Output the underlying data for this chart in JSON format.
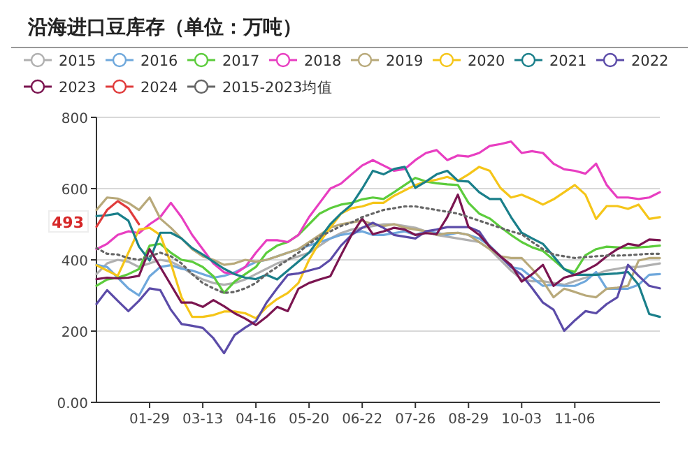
{
  "chart_data": {
    "type": "line",
    "title": "沿海进口豆库存（单位：万吨）",
    "legend": "top",
    "grid": "y",
    "line_style": "solid",
    "categories": [
      null,
      null,
      null,
      null,
      null,
      "01-29",
      null,
      null,
      null,
      null,
      "03-13",
      null,
      null,
      null,
      null,
      "04-16",
      null,
      null,
      null,
      null,
      "05-20",
      null,
      null,
      null,
      null,
      "06-22",
      null,
      null,
      null,
      null,
      "07-26",
      null,
      null,
      null,
      null,
      "08-29",
      null,
      null,
      null,
      null,
      "10-03",
      null,
      null,
      null,
      null,
      "11-06",
      null,
      null,
      null,
      null,
      null,
      null,
      null,
      null
    ],
    "ylim": [
      0,
      800
    ],
    "yticks": [
      {
        "value": 0,
        "label": "0.00"
      },
      200,
      400,
      600,
      800
    ],
    "annotations": [
      "493"
    ],
    "series": [
      {
        "name": "2015",
        "color": "#b0b0b0",
        "values": [
          360,
          390,
          400,
          395,
          380,
          390,
          400,
          395,
          380,
          360,
          345,
          335,
          330,
          335,
          345,
          360,
          375,
          390,
          400,
          410,
          420,
          440,
          460,
          475,
          485,
          490,
          495,
          500,
          500,
          495,
          490,
          480,
          470,
          465,
          460,
          455,
          450,
          430,
          400,
          370,
          345,
          340,
          340,
          335,
          330,
          340,
          350,
          360,
          370,
          375,
          380,
          380,
          385,
          390
        ]
      },
      {
        "name": "2016",
        "color": "#6fa8dc",
        "values": [
          386,
          380,
          350,
          320,
          300,
          354,
          380,
          385,
          375,
          370,
          360,
          350,
          355,
          365,
          380,
          394,
          400,
          410,
          420,
          430,
          440,
          450,
          460,
          470,
          475,
          480,
          470,
          470,
          475,
          480,
          470,
          480,
          476,
          470,
          476,
          470,
          460,
          440,
          410,
          380,
          374,
          350,
          327,
          330,
          327,
          327,
          340,
          366,
          319,
          319,
          319,
          330,
          358,
          360
        ]
      },
      {
        "name": "2017",
        "color": "#5ccc3c",
        "values": [
          327,
          345,
          350,
          360,
          374,
          440,
          445,
          420,
          400,
          395,
          380,
          354,
          307,
          339,
          360,
          380,
          420,
          440,
          450,
          470,
          500,
          530,
          545,
          555,
          560,
          570,
          575,
          571,
          590,
          610,
          630,
          620,
          615,
          612,
          610,
          560,
          530,
          516,
          492,
          470,
          450,
          435,
          425,
          400,
          374,
          366,
          413,
          430,
          437,
          435,
          433,
          435,
          437,
          440
        ]
      },
      {
        "name": "2018",
        "color": "#e83ec1",
        "values": [
          430,
          445,
          470,
          480,
          475,
          500,
          520,
          560,
          520,
          470,
          430,
          390,
          365,
          360,
          380,
          420,
          455,
          455,
          450,
          470,
          520,
          560,
          600,
          614,
          640,
          665,
          680,
          665,
          650,
          655,
          680,
          700,
          708,
          680,
          693,
          690,
          700,
          720,
          725,
          732,
          700,
          705,
          700,
          670,
          654,
          650,
          642,
          670,
          610,
          575,
          575,
          571,
          575,
          590
        ]
      },
      {
        "name": "2019",
        "color": "#b8a97a",
        "values": [
          540,
          575,
          572,
          560,
          540,
          575,
          516,
          490,
          460,
          430,
          410,
          400,
          386,
          390,
          400,
          395,
          400,
          410,
          420,
          430,
          450,
          470,
          490,
          500,
          505,
          510,
          500,
          495,
          500,
          490,
          485,
          480,
          470,
          475,
          476,
          470,
          450,
          430,
          410,
          405,
          405,
          374,
          340,
          295,
          319,
          310,
          300,
          295,
          319,
          322,
          327,
          398,
          405,
          405
        ]
      },
      {
        "name": "2020",
        "color": "#f5c518",
        "values": [
          385,
          370,
          355,
          420,
          485,
          490,
          470,
          390,
          295,
          240,
          240,
          245,
          255,
          255,
          250,
          236,
          267,
          290,
          307,
          335,
          400,
          450,
          490,
          530,
          545,
          550,
          560,
          560,
          580,
          595,
          610,
          620,
          625,
          633,
          622,
          640,
          661,
          650,
          602,
          575,
          583,
          570,
          555,
          570,
          590,
          610,
          583,
          515,
          551,
          551,
          543,
          555,
          515,
          520
        ]
      },
      {
        "name": "2021",
        "color": "#1a7f8a",
        "values": [
          523,
          525,
          530,
          510,
          437,
          398,
          476,
          476,
          460,
          433,
          415,
          395,
          375,
          360,
          350,
          346,
          358,
          345,
          370,
          395,
          420,
          460,
          500,
          530,
          555,
          600,
          650,
          640,
          655,
          661,
          602,
          620,
          640,
          650,
          622,
          620,
          590,
          571,
          571,
          520,
          476,
          460,
          445,
          410,
          374,
          358,
          358,
          358,
          360,
          362,
          366,
          330,
          248,
          240
        ]
      },
      {
        "name": "2022",
        "color": "#5b4ba8",
        "values": [
          276,
          315,
          285,
          256,
          285,
          320,
          315,
          260,
          220,
          215,
          209,
          180,
          138,
          189,
          210,
          228,
          280,
          320,
          358,
          362,
          370,
          378,
          400,
          440,
          470,
          490,
          504,
          490,
          470,
          465,
          460,
          480,
          485,
          492,
          492,
          492,
          480,
          437,
          410,
          380,
          358,
          320,
          280,
          260,
          201,
          230,
          256,
          250,
          276,
          295,
          386,
          355,
          327,
          320
        ]
      },
      {
        "name": "2023",
        "color": "#7b1550",
        "values": [
          346,
          350,
          348,
          350,
          355,
          430,
          380,
          330,
          280,
          280,
          268,
          287,
          270,
          250,
          235,
          217,
          240,
          268,
          256,
          319,
          335,
          345,
          354,
          413,
          470,
          516,
          472,
          480,
          490,
          485,
          470,
          475,
          472,
          520,
          583,
          492,
          470,
          437,
          410,
          386,
          339,
          360,
          386,
          327,
          350,
          358,
          370,
          386,
          410,
          430,
          445,
          440,
          457,
          455
        ]
      },
      {
        "name": "2024",
        "color": "#e03c3c",
        "values": [
          493,
          540,
          565,
          545,
          500,
          null,
          null,
          null,
          null,
          null,
          null,
          null,
          null,
          null,
          null,
          null,
          null,
          null,
          null,
          null,
          null,
          null,
          null,
          null,
          null,
          null,
          null,
          null,
          null,
          null,
          null,
          null,
          null,
          null,
          null,
          null,
          null,
          null,
          null,
          null,
          null,
          null,
          null,
          null,
          null,
          null,
          null,
          null,
          null,
          null,
          null,
          null,
          null,
          null
        ]
      },
      {
        "name": "2015-2023均值",
        "color": "#666666",
        "line_style": "dotted",
        "values": [
          433,
          417,
          415,
          405,
          400,
          410,
          420,
          410,
          390,
          360,
          335,
          320,
          307,
          310,
          320,
          335,
          360,
          380,
          400,
          420,
          445,
          465,
          480,
          495,
          505,
          520,
          530,
          540,
          545,
          550,
          550,
          545,
          540,
          535,
          530,
          520,
          510,
          500,
          490,
          480,
          472,
          450,
          430,
          415,
          410,
          405,
          408,
          410,
          412,
          412,
          413,
          415,
          417,
          417
        ]
      }
    ]
  }
}
